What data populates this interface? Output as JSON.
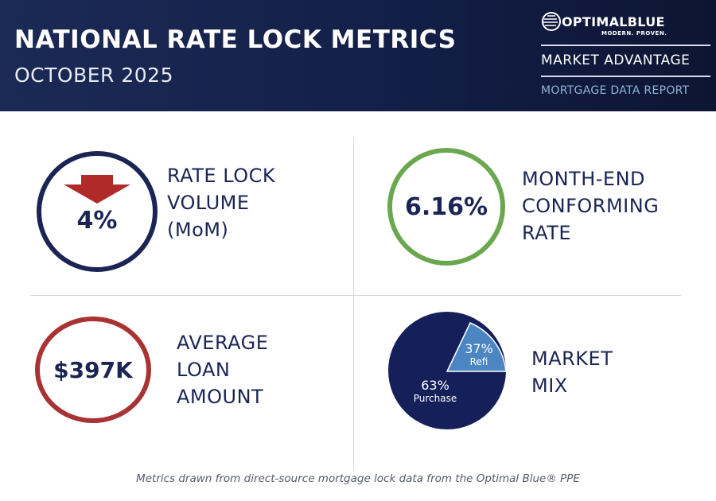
{
  "header": {
    "title": "NATIONAL RATE LOCK METRICS",
    "subtitle": "OCTOBER 2025",
    "logo_text": "OPTIMALBLUE",
    "logo_tagline": "MODERN. PROVEN.",
    "program": "MARKET ADVANTAGE",
    "report": "MORTGAGE DATA REPORT"
  },
  "metrics": {
    "rate_lock": {
      "value": "4%",
      "direction": "down",
      "icon": "arrow-down-icon",
      "label": [
        "RATE LOCK",
        "VOLUME",
        "(MoM)"
      ],
      "color": "#1b2554",
      "arrow_color": "#b02a2a"
    },
    "conforming": {
      "value": "6.16%",
      "label": [
        "MONTH-END",
        "CONFORMING",
        "RATE"
      ],
      "color": "#6aa84f"
    },
    "loan": {
      "value": "$397K",
      "label": [
        "AVERAGE",
        "LOAN",
        "AMOUNT"
      ],
      "color": "#a93232"
    },
    "mix": {
      "label": [
        "MARKET",
        "MIX"
      ],
      "slices": [
        {
          "name": "Purchase",
          "percent": "63%",
          "value": 63,
          "color": "#15205a"
        },
        {
          "name": "Refi",
          "percent": "37%",
          "value": 37,
          "color": "#4b86c2"
        }
      ]
    }
  },
  "footer": "Metrics drawn from direct-source mortgage lock data from the Optimal Blue® PPE"
}
